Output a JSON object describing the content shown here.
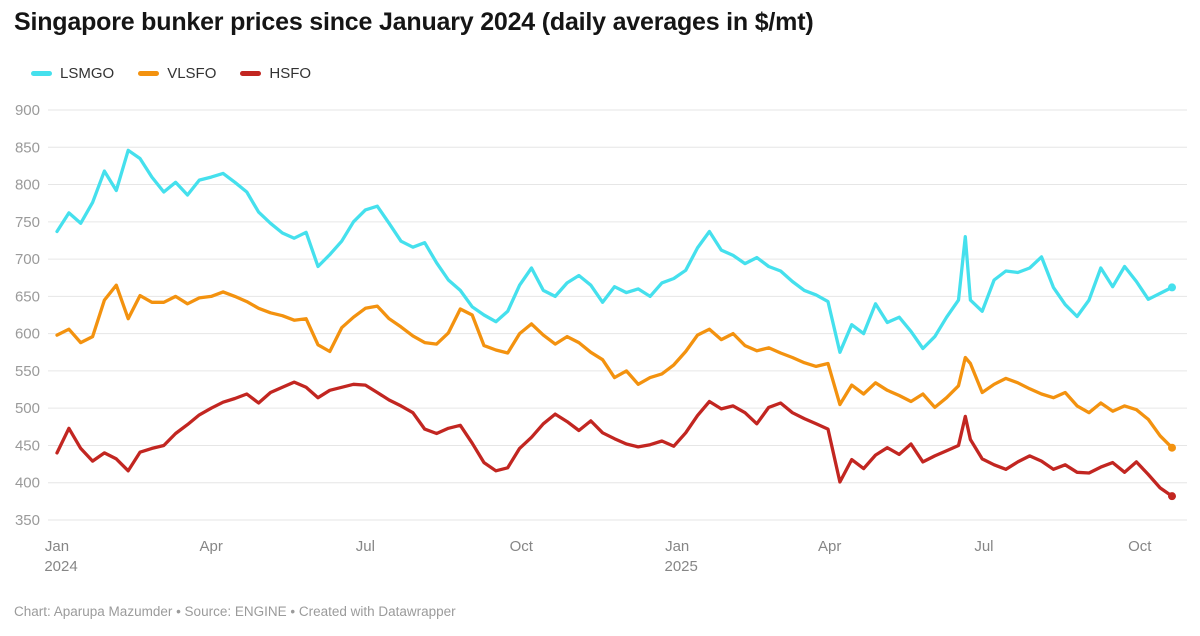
{
  "chart": {
    "title": "Singapore bunker prices since January 2024 (daily averages in $/mt)",
    "footer": "Chart: Aparupa Mazumder • Source: ENGINE • Created with Datawrapper"
  },
  "legend": {
    "items": [
      {
        "label": "LSMGO",
        "color": "#45E0ED"
      },
      {
        "label": "VLSFO",
        "color": "#F3920F"
      },
      {
        "label": "HSFO",
        "color": "#C22621"
      }
    ]
  },
  "colors": {
    "grid": "#e6e6e6",
    "y_tick_label": "#9a9a9a",
    "x_tick_label": "#868686",
    "title": "#151515",
    "footer": "#9b9b9b"
  },
  "chart_data": {
    "type": "line",
    "title": "Singapore bunker prices since January 2024 (daily averages in $/mt)",
    "xlabel": "",
    "ylabel": "$/mt",
    "ylim": [
      350,
      900
    ],
    "yticks": [
      350,
      400,
      450,
      500,
      550,
      600,
      650,
      700,
      750,
      800,
      850,
      900
    ],
    "grid": "horizontal",
    "legend_position": "top-left",
    "x_range": [
      "2024-01-01",
      "2025-10-20"
    ],
    "xticks": [
      {
        "date": "2024-01-01",
        "label": "Jan",
        "sublabel": "2024"
      },
      {
        "date": "2024-04-01",
        "label": "Apr"
      },
      {
        "date": "2024-07-01",
        "label": "Jul"
      },
      {
        "date": "2024-10-01",
        "label": "Oct"
      },
      {
        "date": "2025-01-01",
        "label": "Jan",
        "sublabel": "2025"
      },
      {
        "date": "2025-04-01",
        "label": "Apr"
      },
      {
        "date": "2025-07-01",
        "label": "Jul"
      },
      {
        "date": "2025-10-01",
        "label": "Oct"
      }
    ],
    "dates": [
      "2024-01-01",
      "2024-01-08",
      "2024-01-15",
      "2024-01-22",
      "2024-01-29",
      "2024-02-05",
      "2024-02-12",
      "2024-02-19",
      "2024-02-26",
      "2024-03-04",
      "2024-03-11",
      "2024-03-18",
      "2024-03-25",
      "2024-04-01",
      "2024-04-08",
      "2024-04-15",
      "2024-04-22",
      "2024-04-29",
      "2024-05-06",
      "2024-05-13",
      "2024-05-20",
      "2024-05-27",
      "2024-06-03",
      "2024-06-10",
      "2024-06-17",
      "2024-06-24",
      "2024-07-01",
      "2024-07-08",
      "2024-07-15",
      "2024-07-22",
      "2024-07-29",
      "2024-08-05",
      "2024-08-12",
      "2024-08-19",
      "2024-08-26",
      "2024-09-02",
      "2024-09-09",
      "2024-09-16",
      "2024-09-23",
      "2024-09-30",
      "2024-10-07",
      "2024-10-14",
      "2024-10-21",
      "2024-10-28",
      "2024-11-04",
      "2024-11-11",
      "2024-11-18",
      "2024-11-25",
      "2024-12-02",
      "2024-12-09",
      "2024-12-16",
      "2024-12-23",
      "2024-12-30",
      "2025-01-06",
      "2025-01-13",
      "2025-01-20",
      "2025-01-27",
      "2025-02-03",
      "2025-02-10",
      "2025-02-17",
      "2025-02-24",
      "2025-03-03",
      "2025-03-10",
      "2025-03-17",
      "2025-03-24",
      "2025-03-31",
      "2025-04-07",
      "2025-04-14",
      "2025-04-21",
      "2025-04-28",
      "2025-05-05",
      "2025-05-12",
      "2025-05-19",
      "2025-05-26",
      "2025-06-02",
      "2025-06-09",
      "2025-06-16",
      "2025-06-20",
      "2025-06-23",
      "2025-06-30",
      "2025-07-07",
      "2025-07-14",
      "2025-07-21",
      "2025-07-28",
      "2025-08-04",
      "2025-08-11",
      "2025-08-18",
      "2025-08-25",
      "2025-09-01",
      "2025-09-08",
      "2025-09-15",
      "2025-09-22",
      "2025-09-29",
      "2025-10-06",
      "2025-10-13",
      "2025-10-20"
    ],
    "series": [
      {
        "name": "LSMGO",
        "color": "#45E0ED",
        "values": [
          737,
          762,
          748,
          776,
          818,
          792,
          846,
          835,
          810,
          790,
          803,
          786,
          806,
          810,
          815,
          803,
          790,
          763,
          748,
          735,
          728,
          736,
          690,
          706,
          724,
          750,
          766,
          771,
          748,
          724,
          716,
          722,
          695,
          672,
          658,
          636,
          625,
          616,
          630,
          665,
          688,
          658,
          650,
          668,
          678,
          665,
          642,
          663,
          655,
          660,
          650,
          668,
          674,
          685,
          715,
          737,
          712,
          705,
          694,
          702,
          690,
          684,
          670,
          658,
          652,
          643,
          575,
          612,
          600,
          640,
          615,
          622,
          603,
          580,
          596,
          622,
          645,
          730,
          645,
          630,
          672,
          684,
          682,
          688,
          703,
          662,
          639,
          623,
          645,
          688,
          663,
          690,
          670,
          646,
          654,
          662
        ]
      },
      {
        "name": "VLSFO",
        "color": "#F3920F",
        "values": [
          598,
          606,
          588,
          596,
          645,
          665,
          620,
          651,
          642,
          642,
          650,
          640,
          648,
          650,
          656,
          650,
          643,
          634,
          628,
          624,
          618,
          620,
          585,
          576,
          608,
          622,
          634,
          637,
          620,
          609,
          597,
          588,
          586,
          601,
          633,
          625,
          584,
          578,
          574,
          600,
          613,
          598,
          586,
          596,
          588,
          575,
          565,
          541,
          550,
          532,
          541,
          546,
          558,
          576,
          598,
          606,
          592,
          600,
          584,
          577,
          581,
          574,
          568,
          561,
          556,
          560,
          505,
          531,
          519,
          534,
          524,
          517,
          509,
          519,
          501,
          514,
          530,
          568,
          560,
          521,
          532,
          540,
          534,
          526,
          519,
          514,
          521,
          503,
          494,
          507,
          496,
          503,
          498,
          485,
          463,
          447
        ]
      },
      {
        "name": "HSFO",
        "color": "#C22621",
        "values": [
          440,
          473,
          446,
          429,
          440,
          432,
          416,
          441,
          446,
          450,
          466,
          478,
          491,
          500,
          508,
          513,
          519,
          507,
          521,
          528,
          535,
          528,
          514,
          524,
          528,
          532,
          531,
          521,
          511,
          503,
          494,
          472,
          466,
          473,
          477,
          453,
          427,
          416,
          420,
          446,
          461,
          479,
          492,
          482,
          470,
          483,
          467,
          459,
          452,
          448,
          451,
          456,
          449,
          467,
          490,
          509,
          499,
          503,
          494,
          479,
          501,
          507,
          494,
          486,
          479,
          472,
          401,
          431,
          419,
          437,
          447,
          438,
          452,
          428,
          436,
          443,
          450,
          489,
          458,
          432,
          424,
          418,
          428,
          436,
          429,
          418,
          424,
          414,
          413,
          421,
          427,
          414,
          428,
          411,
          393,
          382
        ]
      }
    ]
  }
}
